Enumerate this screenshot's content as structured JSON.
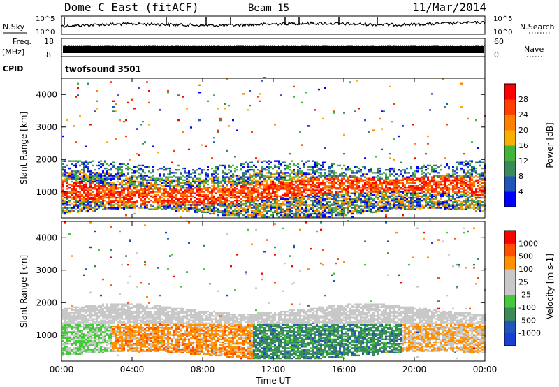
{
  "header": {
    "title": "Dome C East (fitACF)",
    "beam": "Beam 15",
    "date": "11/Mar/2014"
  },
  "panel_labels": {
    "nsky": "N.Sky",
    "nsearch": "N.Search",
    "freq": "Freq.",
    "mhz": "[MHz]",
    "nave": "Nave",
    "cpid": "CPID",
    "cpid_value": "twofsound 3501"
  },
  "small_ticks": {
    "nsky_left": [
      "10^5",
      "10^0"
    ],
    "nsky_right": [
      "10^5",
      "10^0"
    ],
    "freq_left": [
      "18",
      "8"
    ],
    "freq_right": [
      "60",
      "0"
    ]
  },
  "colors": {
    "power": [
      "#0000ff",
      "#2255bb",
      "#3a8a5a",
      "#46b23e",
      "#f5b000",
      "#ff8000",
      "#ff4000",
      "#ff0000"
    ],
    "velocity": [
      "#ff0000",
      "#ff5000",
      "#ff9000",
      "#c8c8c8",
      "#c8c8c8",
      "#46c83c",
      "#3a8a5a",
      "#2255bb",
      "#1b3fd0"
    ]
  },
  "chart_data": [
    {
      "type": "heatmap",
      "quantity": "Power",
      "xlabel": "",
      "ylabel": "Slant Range [km]",
      "xlim": [
        "00:00",
        "24:00"
      ],
      "ylim": [
        200,
        4500
      ],
      "yticks": [
        "1000",
        "2000",
        "3000",
        "4000"
      ],
      "colorbar": {
        "label": "Power [dB]",
        "ticks": [
          "4",
          "8",
          "12",
          "16",
          "20",
          "24",
          "28"
        ],
        "range": [
          0,
          32
        ]
      },
      "dominant_echo_band_km": [
        400,
        1600
      ]
    },
    {
      "type": "heatmap",
      "quantity": "Velocity",
      "xlabel": "Time UT",
      "ylabel": "Slant Range [km]",
      "xlim": [
        "00:00",
        "24:00"
      ],
      "ylim": [
        200,
        4500
      ],
      "xticks": [
        "00:00",
        "04:00",
        "08:00",
        "12:00",
        "16:00",
        "20:00",
        "00:00"
      ],
      "yticks": [
        "1000",
        "2000",
        "3000",
        "4000"
      ],
      "colorbar": {
        "label": "Velocity [m s-1]",
        "ticks": [
          "1000",
          "500",
          "100",
          "25",
          "-25",
          "-100",
          "-500",
          "-1000"
        ]
      },
      "dominant_echo_band_km": [
        400,
        2000
      ]
    }
  ]
}
